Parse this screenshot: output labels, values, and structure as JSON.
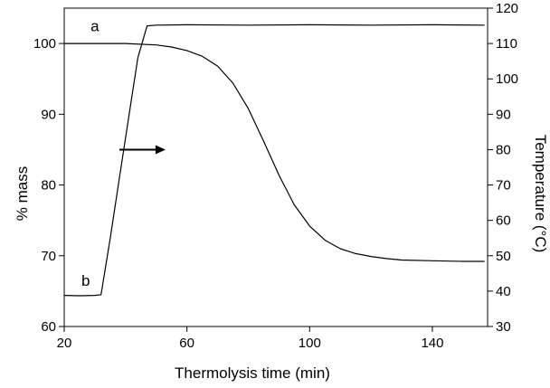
{
  "chart_data": {
    "type": "line",
    "xlabel": "Thermolysis time (min)",
    "ylabel": "% mass",
    "y2label": "Temperature (°C)",
    "xlim": [
      20,
      158
    ],
    "ylim": [
      60,
      105
    ],
    "y2lim": [
      30,
      120
    ],
    "x_ticks": [
      20,
      60,
      100,
      140
    ],
    "x_tick_labels": [
      "20",
      "60",
      "100",
      "140"
    ],
    "y_ticks": [
      60,
      70,
      80,
      90,
      100
    ],
    "y_tick_labels": [
      "60",
      "70",
      "80",
      "90",
      "100"
    ],
    "y2_ticks": [
      30,
      40,
      50,
      60,
      70,
      80,
      90,
      100,
      110,
      120
    ],
    "y2_tick_labels": [
      "30",
      "40",
      "50",
      "60",
      "70",
      "80",
      "90",
      "100",
      "110",
      "120"
    ],
    "grid": false,
    "legend": "none",
    "series": [
      {
        "label": "a",
        "axis": "left",
        "x": [
          20,
          30,
          40,
          50,
          55,
          60,
          65,
          70,
          75,
          80,
          85,
          90,
          95,
          100,
          105,
          110,
          115,
          120,
          125,
          130,
          140,
          150,
          157
        ],
        "y": [
          100,
          100,
          100,
          99.8,
          99.5,
          99.0,
          98.2,
          96.8,
          94.4,
          90.8,
          86.2,
          81.4,
          77.2,
          74.2,
          72.2,
          71.0,
          70.3,
          69.9,
          69.6,
          69.4,
          69.3,
          69.2,
          69.2
        ]
      },
      {
        "label": "b",
        "axis": "right",
        "x": [
          20,
          25,
          30,
          32,
          35,
          38,
          41,
          44,
          47,
          50,
          60,
          80,
          100,
          120,
          140,
          157
        ],
        "y": [
          38.8,
          38.7,
          38.8,
          39.0,
          55.0,
          72.0,
          89.0,
          106.0,
          115.0,
          115.2,
          115.3,
          115.2,
          115.3,
          115.2,
          115.3,
          115.2
        ]
      }
    ],
    "annotations": [
      {
        "text": "a",
        "x": 30,
        "y": 102.5,
        "axis": "left"
      },
      {
        "text": "b",
        "x": 27,
        "y": 66.5,
        "axis": "left"
      },
      {
        "text": "→",
        "type": "arrow",
        "x_start": 38,
        "x_end": 53,
        "y": 80,
        "axis": "right",
        "meaning": "points to temperature (right) axis"
      }
    ]
  }
}
